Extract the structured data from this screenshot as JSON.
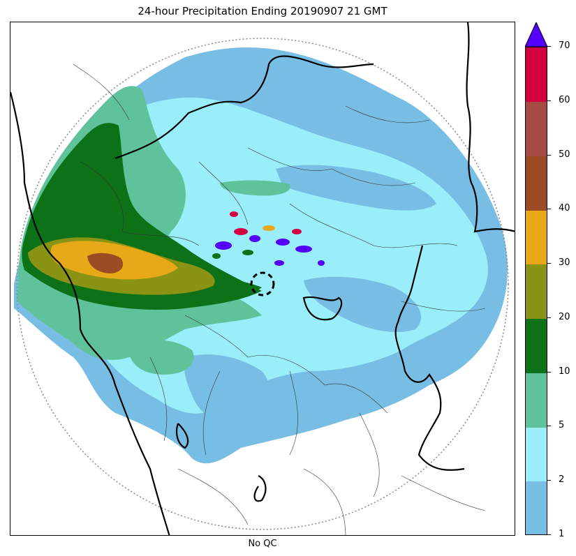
{
  "title": "24-hour Precipitation Ending 20190907 21 GMT",
  "xlabel": "No QC",
  "colorbar": {
    "levels": [
      1,
      2,
      5,
      10,
      20,
      30,
      40,
      50,
      60,
      70
    ],
    "tick_labels": [
      "1",
      "2",
      "5",
      "10",
      "20",
      "30",
      "40",
      "50",
      "60",
      "70"
    ],
    "colors": [
      "#78bde3",
      "#99eef9",
      "#5fc29a",
      "#0d7117",
      "#8a9314",
      "#e8a919",
      "#9b4c24",
      "#a64a44",
      "#d20040"
    ],
    "over_color": "#5400ff",
    "extend": "max"
  },
  "map": {
    "range_ring_style": "dotted",
    "background": "#ffffff"
  }
}
